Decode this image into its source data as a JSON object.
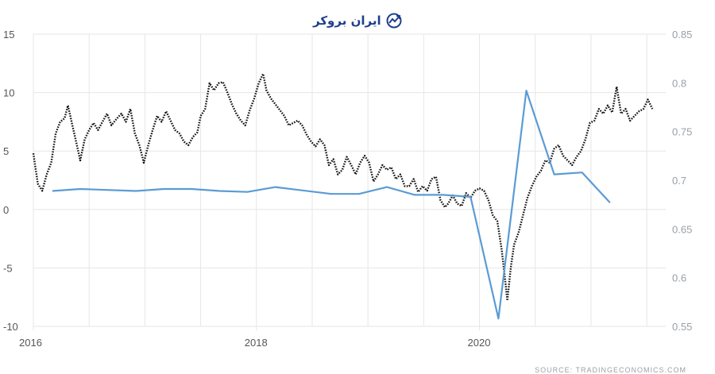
{
  "watermark": {
    "text": "ایران بروکر"
  },
  "source": "SOURCE:  TRADINGECONOMICS.COM",
  "chart_data": {
    "type": "line",
    "title": "",
    "x": {
      "min": 2016.0,
      "max": 2021.67,
      "ticks": [
        "2016",
        "2018",
        "2020"
      ],
      "tick_values": [
        2016,
        2018,
        2020
      ]
    },
    "y_left": {
      "min": -10,
      "max": 15,
      "ticks": [
        -10,
        -5,
        0,
        5,
        10,
        15
      ],
      "labels": [
        "-10",
        "-5",
        "0",
        "5",
        "10",
        "15"
      ]
    },
    "y_right": {
      "min": 0.55,
      "max": 0.85,
      "ticks": [
        0.55,
        0.6,
        0.65,
        0.7,
        0.75,
        0.8,
        0.85
      ],
      "labels": [
        "0.55",
        "0.6",
        "0.65",
        "0.7",
        "0.75",
        "0.8",
        "0.85"
      ]
    },
    "grid": true,
    "series": [
      {
        "axis": "left",
        "style": "dotted",
        "color": "#111111",
        "points": [
          [
            2016.0,
            4.8
          ],
          [
            2016.04,
            2.2
          ],
          [
            2016.08,
            1.6
          ],
          [
            2016.12,
            3.0
          ],
          [
            2016.16,
            4.0
          ],
          [
            2016.2,
            6.5
          ],
          [
            2016.24,
            7.5
          ],
          [
            2016.28,
            7.8
          ],
          [
            2016.31,
            8.9
          ],
          [
            2016.35,
            7.2
          ],
          [
            2016.39,
            5.5
          ],
          [
            2016.42,
            4.2
          ],
          [
            2016.46,
            6.0
          ],
          [
            2016.5,
            6.8
          ],
          [
            2016.54,
            7.4
          ],
          [
            2016.58,
            6.8
          ],
          [
            2016.62,
            7.5
          ],
          [
            2016.66,
            8.2
          ],
          [
            2016.7,
            7.2
          ],
          [
            2016.75,
            7.8
          ],
          [
            2016.79,
            8.2
          ],
          [
            2016.83,
            7.5
          ],
          [
            2016.87,
            8.6
          ],
          [
            2016.91,
            6.5
          ],
          [
            2016.95,
            5.5
          ],
          [
            2016.99,
            4.0
          ],
          [
            2017.03,
            5.5
          ],
          [
            2017.07,
            6.8
          ],
          [
            2017.11,
            8.0
          ],
          [
            2017.15,
            7.5
          ],
          [
            2017.19,
            8.4
          ],
          [
            2017.23,
            7.6
          ],
          [
            2017.27,
            6.8
          ],
          [
            2017.31,
            6.5
          ],
          [
            2017.35,
            5.8
          ],
          [
            2017.39,
            5.5
          ],
          [
            2017.43,
            6.2
          ],
          [
            2017.47,
            6.6
          ],
          [
            2017.5,
            8.0
          ],
          [
            2017.54,
            8.6
          ],
          [
            2017.58,
            10.8
          ],
          [
            2017.62,
            10.2
          ],
          [
            2017.66,
            10.8
          ],
          [
            2017.7,
            10.9
          ],
          [
            2017.74,
            10.0
          ],
          [
            2017.78,
            9.0
          ],
          [
            2017.82,
            8.2
          ],
          [
            2017.86,
            7.6
          ],
          [
            2017.9,
            7.2
          ],
          [
            2017.94,
            8.5
          ],
          [
            2017.98,
            9.5
          ],
          [
            2018.02,
            10.8
          ],
          [
            2018.06,
            11.6
          ],
          [
            2018.09,
            10.2
          ],
          [
            2018.13,
            9.5
          ],
          [
            2018.17,
            9.0
          ],
          [
            2018.21,
            8.5
          ],
          [
            2018.25,
            8.0
          ],
          [
            2018.29,
            7.2
          ],
          [
            2018.33,
            7.4
          ],
          [
            2018.37,
            7.6
          ],
          [
            2018.41,
            7.2
          ],
          [
            2018.45,
            6.4
          ],
          [
            2018.49,
            5.8
          ],
          [
            2018.53,
            5.4
          ],
          [
            2018.57,
            6.0
          ],
          [
            2018.61,
            5.5
          ],
          [
            2018.65,
            3.8
          ],
          [
            2018.69,
            4.3
          ],
          [
            2018.73,
            3.0
          ],
          [
            2018.77,
            3.4
          ],
          [
            2018.81,
            4.5
          ],
          [
            2018.85,
            3.8
          ],
          [
            2018.89,
            3.0
          ],
          [
            2018.93,
            4.0
          ],
          [
            2018.97,
            4.6
          ],
          [
            2019.01,
            4.0
          ],
          [
            2019.05,
            2.4
          ],
          [
            2019.09,
            3.0
          ],
          [
            2019.13,
            3.8
          ],
          [
            2019.17,
            3.4
          ],
          [
            2019.21,
            3.6
          ],
          [
            2019.25,
            2.6
          ],
          [
            2019.29,
            3.0
          ],
          [
            2019.33,
            2.0
          ],
          [
            2019.37,
            2.0
          ],
          [
            2019.41,
            2.6
          ],
          [
            2019.45,
            1.5
          ],
          [
            2019.49,
            2.0
          ],
          [
            2019.53,
            1.6
          ],
          [
            2019.57,
            2.6
          ],
          [
            2019.61,
            2.8
          ],
          [
            2019.65,
            0.8
          ],
          [
            2019.69,
            0.2
          ],
          [
            2019.72,
            0.5
          ],
          [
            2019.76,
            1.2
          ],
          [
            2019.8,
            0.5
          ],
          [
            2019.84,
            0.3
          ],
          [
            2019.88,
            1.4
          ],
          [
            2019.92,
            1.0
          ],
          [
            2019.96,
            1.6
          ],
          [
            2020.0,
            1.8
          ],
          [
            2020.04,
            1.6
          ],
          [
            2020.08,
            0.8
          ],
          [
            2020.12,
            -0.5
          ],
          [
            2020.16,
            -1.0
          ],
          [
            2020.2,
            -3.5
          ],
          [
            2020.23,
            -6.0
          ],
          [
            2020.25,
            -7.8
          ],
          [
            2020.28,
            -5.0
          ],
          [
            2020.31,
            -3.0
          ],
          [
            2020.35,
            -2.0
          ],
          [
            2020.39,
            -0.5
          ],
          [
            2020.43,
            1.0
          ],
          [
            2020.47,
            2.0
          ],
          [
            2020.51,
            2.8
          ],
          [
            2020.55,
            3.3
          ],
          [
            2020.59,
            4.2
          ],
          [
            2020.63,
            4.0
          ],
          [
            2020.67,
            5.2
          ],
          [
            2020.71,
            5.5
          ],
          [
            2020.75,
            4.6
          ],
          [
            2020.79,
            4.2
          ],
          [
            2020.83,
            3.8
          ],
          [
            2020.87,
            4.5
          ],
          [
            2020.91,
            5.0
          ],
          [
            2020.95,
            6.0
          ],
          [
            2020.99,
            7.4
          ],
          [
            2021.03,
            7.6
          ],
          [
            2021.07,
            8.6
          ],
          [
            2021.11,
            8.2
          ],
          [
            2021.15,
            8.9
          ],
          [
            2021.19,
            8.3
          ],
          [
            2021.23,
            10.5
          ],
          [
            2021.27,
            8.2
          ],
          [
            2021.31,
            8.6
          ],
          [
            2021.35,
            7.6
          ],
          [
            2021.39,
            8.0
          ],
          [
            2021.43,
            8.4
          ],
          [
            2021.47,
            8.6
          ],
          [
            2021.51,
            9.4
          ],
          [
            2021.55,
            8.6
          ]
        ]
      },
      {
        "axis": "right",
        "style": "solid",
        "color": "#5b9bd5",
        "points": [
          [
            2016.17,
            0.689
          ],
          [
            2016.42,
            0.691
          ],
          [
            2016.92,
            0.689
          ],
          [
            2017.17,
            0.691
          ],
          [
            2017.42,
            0.691
          ],
          [
            2017.67,
            0.689
          ],
          [
            2017.92,
            0.688
          ],
          [
            2018.17,
            0.693
          ],
          [
            2018.67,
            0.686
          ],
          [
            2018.92,
            0.686
          ],
          [
            2019.17,
            0.693
          ],
          [
            2019.42,
            0.685
          ],
          [
            2019.67,
            0.685
          ],
          [
            2019.92,
            0.683
          ],
          [
            2020.17,
            0.558
          ],
          [
            2020.42,
            0.792
          ],
          [
            2020.67,
            0.706
          ],
          [
            2020.92,
            0.708
          ],
          [
            2021.17,
            0.677
          ]
        ]
      }
    ]
  }
}
